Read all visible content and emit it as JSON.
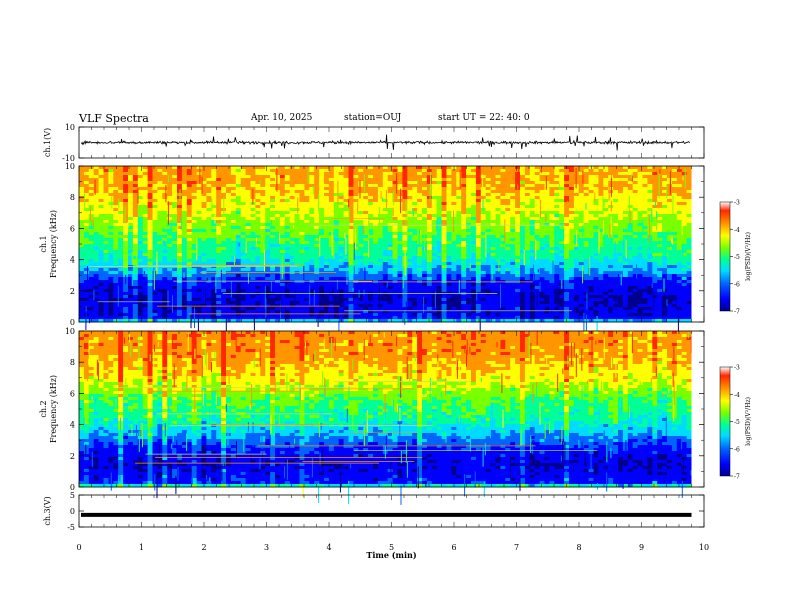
{
  "header": {
    "title": "VLF Spectra",
    "date": "Apr. 10, 2025",
    "station": "station=OUJ",
    "start": "start  UT =   22: 40: 0"
  },
  "colors": {
    "colormap": [
      "#00008c",
      "#0000ff",
      "#0064ff",
      "#00dcff",
      "#00ff96",
      "#78ff00",
      "#ffff00",
      "#ff9600",
      "#ff2800",
      "#ffffff"
    ],
    "trace": "#000000"
  },
  "chart_data": [
    {
      "type": "line",
      "panel": "ch1-waveform",
      "ylabel": "ch.1(V)",
      "ylim": [
        -10,
        10
      ],
      "yticks": [
        "10",
        "-10"
      ],
      "description_level": "noisy waveform around 0 V with spikes up to about +4 V / -4 V",
      "mean": 0,
      "spread": 1
    },
    {
      "type": "heatmap",
      "panel": "ch1-spectrogram",
      "ylabel": "ch.1\nFrequency (kHz)",
      "ylabel_line1": "ch.1",
      "ylabel_line2": "Frequency (kHz)",
      "ylim": [
        0,
        10
      ],
      "yticks": [
        "0",
        "2",
        "4",
        "6",
        "8",
        "10"
      ],
      "colorbar": {
        "label": "log(PSD)(V²/Hz)",
        "range": [
          -7,
          -3
        ],
        "ticks": [
          "-3",
          "-4",
          "-5",
          "-6",
          "-7"
        ]
      },
      "profile": [
        {
          "f": 0.0,
          "v": -5.0
        },
        {
          "f": 0.3,
          "v": -6.4
        },
        {
          "f": 1.5,
          "v": -6.6
        },
        {
          "f": 2.5,
          "v": -6.3
        },
        {
          "f": 3.2,
          "v": -5.6
        },
        {
          "f": 4.2,
          "v": -5.0
        },
        {
          "f": 5.5,
          "v": -4.7
        },
        {
          "f": 7.0,
          "v": -4.2
        },
        {
          "f": 8.5,
          "v": -3.8
        },
        {
          "f": 10.0,
          "v": -3.7
        }
      ]
    },
    {
      "type": "heatmap",
      "panel": "ch2-spectrogram",
      "ylabel_line1": "ch.2",
      "ylabel_line2": "Frequency (kHz)",
      "ylim": [
        0,
        10
      ],
      "yticks": [
        "0",
        "2",
        "4",
        "6",
        "8",
        "10"
      ],
      "colorbar": {
        "label": "log(PSD)(V²/Hz)",
        "range": [
          -7,
          -3
        ],
        "ticks": [
          "-3",
          "-4",
          "-5",
          "-6",
          "-7"
        ]
      },
      "profile": [
        {
          "f": 0.0,
          "v": -4.6
        },
        {
          "f": 0.3,
          "v": -6.2
        },
        {
          "f": 1.5,
          "v": -6.5
        },
        {
          "f": 2.5,
          "v": -6.1
        },
        {
          "f": 3.5,
          "v": -5.4
        },
        {
          "f": 4.5,
          "v": -4.9
        },
        {
          "f": 5.5,
          "v": -4.7
        },
        {
          "f": 7.0,
          "v": -4.0
        },
        {
          "f": 8.5,
          "v": -3.6
        },
        {
          "f": 10.0,
          "v": -3.5
        }
      ]
    },
    {
      "type": "line",
      "panel": "ch3-waveform",
      "ylabel": "ch.3(V)",
      "ylim": [
        -5,
        5
      ],
      "yticks": [
        "5",
        "0",
        "-5"
      ],
      "level": -1.2,
      "xlabel": "Time (min)",
      "xlim": [
        0,
        10
      ],
      "xticks": [
        "0",
        "1",
        "2",
        "3",
        "4",
        "5",
        "6",
        "7",
        "8",
        "9",
        "10"
      ],
      "data_end_min": 9.8
    }
  ]
}
